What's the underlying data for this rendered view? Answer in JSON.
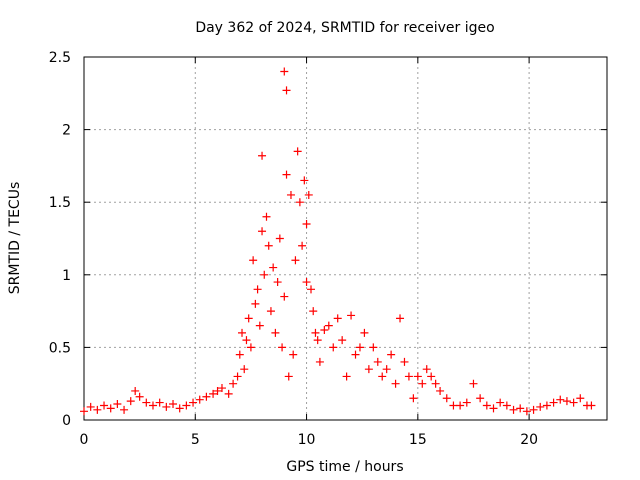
{
  "chart_data": {
    "type": "scatter",
    "title": "Day 362 of 2024, SRMTID for receiver igeo",
    "xlabel": "GPS time / hours",
    "ylabel": "SRMTID / TECUs",
    "xlim": [
      0,
      23.5
    ],
    "ylim": [
      0,
      2.5
    ],
    "x_ticks": [
      0,
      5,
      10,
      15,
      20
    ],
    "y_ticks": [
      0,
      0.5,
      1,
      1.5,
      2,
      2.5
    ],
    "x_tick_labels": [
      "0",
      "5",
      "10",
      "15",
      "20"
    ],
    "y_tick_labels": [
      "0",
      "0.5",
      "1",
      "1.5",
      "2",
      "2.5"
    ],
    "grid": true,
    "marker": "+",
    "series": [
      {
        "name": "igeo",
        "color": "#ff0000",
        "x": [
          0.0,
          0.3,
          0.6,
          0.9,
          1.2,
          1.5,
          1.8,
          2.1,
          2.3,
          2.5,
          2.8,
          3.1,
          3.4,
          3.7,
          4.0,
          4.3,
          4.6,
          4.9,
          5.2,
          5.5,
          5.8,
          6.0,
          6.2,
          6.5,
          6.7,
          6.9,
          7.0,
          7.1,
          7.2,
          7.3,
          7.4,
          7.5,
          7.6,
          7.7,
          7.8,
          7.9,
          8.0,
          8.0,
          8.1,
          8.2,
          8.3,
          8.4,
          8.5,
          8.6,
          8.7,
          8.8,
          8.9,
          9.0,
          9.0,
          9.1,
          9.1,
          9.2,
          9.3,
          9.4,
          9.5,
          9.6,
          9.7,
          9.8,
          9.9,
          10.0,
          10.0,
          10.1,
          10.2,
          10.3,
          10.4,
          10.5,
          10.6,
          10.8,
          11.0,
          11.2,
          11.4,
          11.6,
          11.8,
          12.0,
          12.2,
          12.4,
          12.6,
          12.8,
          13.0,
          13.2,
          13.4,
          13.6,
          13.8,
          14.0,
          14.2,
          14.4,
          14.6,
          14.8,
          15.0,
          15.2,
          15.4,
          15.6,
          15.8,
          16.0,
          16.3,
          16.6,
          16.9,
          17.2,
          17.5,
          17.8,
          18.1,
          18.4,
          18.7,
          19.0,
          19.3,
          19.6,
          19.9,
          20.2,
          20.5,
          20.8,
          21.1,
          21.4,
          21.7,
          22.0,
          22.3,
          22.6,
          22.8
        ],
        "y": [
          0.06,
          0.09,
          0.07,
          0.1,
          0.08,
          0.11,
          0.07,
          0.13,
          0.2,
          0.16,
          0.12,
          0.1,
          0.12,
          0.09,
          0.11,
          0.08,
          0.1,
          0.12,
          0.14,
          0.16,
          0.18,
          0.2,
          0.22,
          0.18,
          0.25,
          0.3,
          0.45,
          0.6,
          0.35,
          0.55,
          0.7,
          0.5,
          1.1,
          0.8,
          0.9,
          0.65,
          1.3,
          1.82,
          1.0,
          1.4,
          1.2,
          0.75,
          1.05,
          0.6,
          0.95,
          1.25,
          0.5,
          0.85,
          2.4,
          2.27,
          1.69,
          0.3,
          1.55,
          0.45,
          1.1,
          1.85,
          1.5,
          1.2,
          1.65,
          1.35,
          0.95,
          1.55,
          0.9,
          0.75,
          0.6,
          0.55,
          0.4,
          0.62,
          0.65,
          0.5,
          0.7,
          0.55,
          0.3,
          0.72,
          0.45,
          0.5,
          0.6,
          0.35,
          0.5,
          0.4,
          0.3,
          0.35,
          0.45,
          0.25,
          0.7,
          0.4,
          0.3,
          0.15,
          0.3,
          0.25,
          0.35,
          0.3,
          0.25,
          0.2,
          0.15,
          0.1,
          0.1,
          0.12,
          0.25,
          0.15,
          0.1,
          0.08,
          0.12,
          0.1,
          0.07,
          0.08,
          0.06,
          0.07,
          0.09,
          0.1,
          0.12,
          0.14,
          0.13,
          0.12,
          0.15,
          0.1,
          0.1
        ]
      }
    ]
  }
}
